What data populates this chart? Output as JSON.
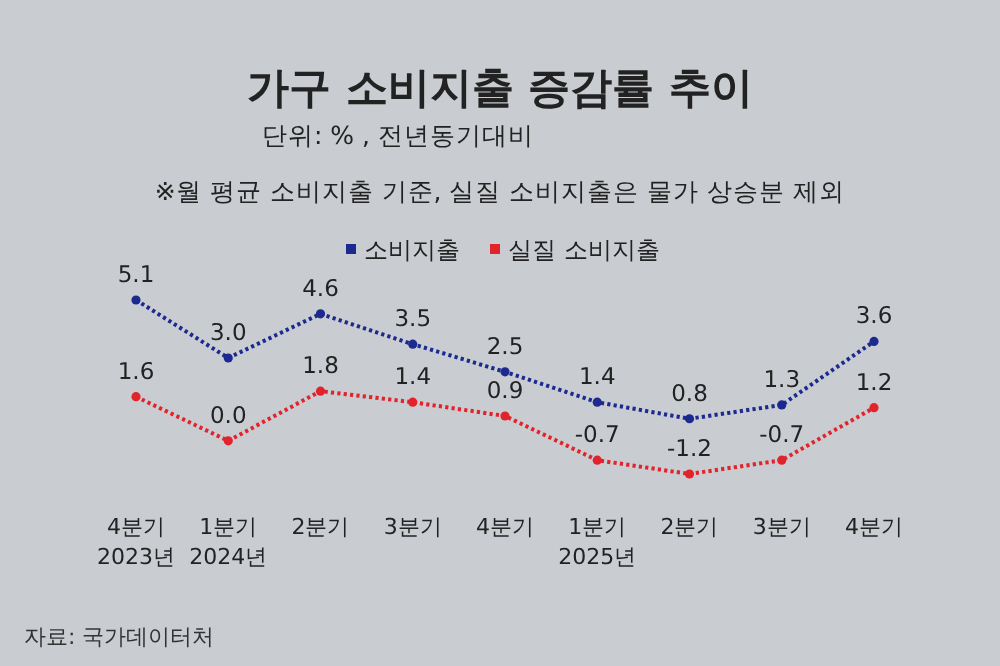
{
  "chart_data": {
    "type": "line",
    "title": "가구 소비지출 증감률 추이",
    "subtitle": "단위: % , 전년동기대비",
    "annotations": [
      "※월 평균 소비지출 기준, 실질 소비지출은 물가 상승분 제외",
      "자료: 국가데이터처"
    ],
    "categories": [
      "4분기\n2023년",
      "1분기\n2024년",
      "2분기",
      "3분기",
      "4분기",
      "1분기\n2025년",
      "2분기",
      "3분기",
      "4분기"
    ],
    "series": [
      {
        "name": "소비지출",
        "color": "#1c2a8f",
        "values": [
          5.1,
          3.0,
          4.6,
          3.5,
          2.5,
          1.4,
          0.8,
          1.3,
          3.6
        ],
        "value_labels": [
          "5.1",
          "3.0",
          "4.6",
          "3.5",
          "2.5",
          "1.4",
          "0.8",
          "1.3",
          "3.6"
        ]
      },
      {
        "name": "실질 소비지출",
        "color": "#e3232b",
        "values": [
          1.6,
          0.0,
          1.8,
          1.4,
          0.9,
          -0.7,
          -1.2,
          -0.7,
          1.2
        ],
        "value_labels": [
          "1.6",
          "0.0",
          "1.8",
          "1.4",
          "0.9",
          "-0.7",
          "-1.2",
          "-0.7",
          "1.2"
        ]
      }
    ],
    "legend": "top",
    "marker": "circle",
    "line_style": "dotted"
  }
}
